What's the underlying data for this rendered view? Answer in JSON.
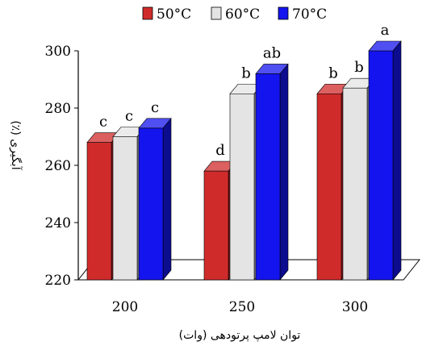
{
  "chart_data": {
    "type": "bar",
    "categories": [
      "200",
      "250",
      "300"
    ],
    "series": [
      {
        "name": "50°C",
        "color": "#d02b2b",
        "values": [
          268,
          258,
          285
        ],
        "letters": [
          "c",
          "d",
          "b"
        ]
      },
      {
        "name": "60°C",
        "color": "#e4e4e4",
        "values": [
          270,
          285,
          287
        ],
        "letters": [
          "c",
          "b",
          "b"
        ]
      },
      {
        "name": "70°C",
        "color": "#1414ee",
        "values": [
          273,
          292,
          300
        ],
        "letters": [
          "c",
          "ab",
          "a"
        ]
      }
    ],
    "xlabel": "توان لامپ پرتودهی (وات)",
    "ylabel": "آبگیری (٪)",
    "ylim": [
      220,
      300
    ],
    "yticks": [
      220,
      240,
      260,
      280,
      300
    ],
    "grid": false,
    "legend_position": "top",
    "style": "3d-column"
  }
}
